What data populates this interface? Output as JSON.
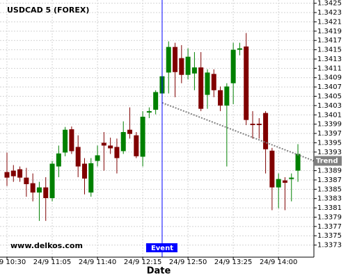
{
  "chart_data": {
    "type": "candlestick",
    "title": "USDCAD 5 (FOREX)",
    "x_label": "Date",
    "watermark": "www.delkos.com",
    "categories": [
      "24/9 10:30",
      null,
      null,
      null,
      null,
      null,
      null,
      "24/9 11:05",
      null,
      null,
      null,
      null,
      null,
      null,
      "24/9 11:40",
      null,
      null,
      null,
      null,
      null,
      null,
      "24/9 12:15",
      null,
      null,
      null,
      null,
      null,
      null,
      "24/9 12:50",
      null,
      null,
      null,
      null,
      null,
      null,
      "24/9 13:25",
      null,
      null,
      null,
      null,
      null,
      null,
      "24/9 14:00",
      null,
      null,
      null
    ],
    "open": [
      1.33887,
      1.3389,
      1.33893,
      1.33875,
      1.33863,
      1.33843,
      1.33854,
      1.33831,
      1.33899,
      1.33929,
      1.33979,
      1.33941,
      1.33905,
      1.33843,
      1.33911,
      1.3395,
      1.33944,
      1.33941,
      1.33932,
      1.33978,
      1.33966,
      1.3392,
      1.34015,
      1.34021,
      1.34056,
      1.34101,
      1.34156,
      1.34132,
      1.34096,
      1.34099,
      1.34112,
      1.34053,
      1.34098,
      1.34063,
      1.3403,
      1.34078,
      1.3415,
      1.34157,
      1.33991,
      1.33991,
      1.34014,
      1.33933,
      1.33854,
      1.33869,
      1.33872,
      1.3389
    ],
    "high": [
      1.33929,
      1.33902,
      1.33899,
      1.33896,
      1.33884,
      1.33866,
      1.33876,
      1.33911,
      1.33944,
      1.33984,
      1.33985,
      1.33966,
      1.33917,
      1.33917,
      1.33944,
      1.33973,
      1.33961,
      1.33959,
      1.33996,
      1.34026,
      1.33973,
      1.34018,
      1.34026,
      1.34063,
      1.34108,
      1.34168,
      1.34165,
      1.3416,
      1.34153,
      1.34145,
      1.34145,
      1.34108,
      1.34108,
      1.34071,
      1.34078,
      1.34165,
      1.34165,
      1.34186,
      1.34018,
      1.34003,
      1.34018,
      1.33939,
      1.33884,
      1.33876,
      1.33884,
      1.33947
    ],
    "low": [
      1.33857,
      1.33866,
      1.33866,
      1.33834,
      1.33824,
      1.33782,
      1.33782,
      1.33824,
      1.33876,
      1.33921,
      1.33926,
      1.33876,
      1.33839,
      1.33834,
      1.33899,
      1.3389,
      1.33926,
      1.33884,
      1.33926,
      1.33959,
      1.33917,
      1.33899,
      1.34003,
      1.34011,
      1.34041,
      1.34056,
      1.34048,
      1.34078,
      1.34086,
      1.34063,
      1.34018,
      1.34023,
      1.34048,
      1.34018,
      1.33899,
      1.34033,
      1.34138,
      1.33988,
      1.33959,
      1.33959,
      1.33884,
      1.33805,
      1.33809,
      1.33805,
      1.33824,
      1.33866
    ],
    "close": [
      1.33875,
      1.33878,
      1.33875,
      1.33861,
      1.33843,
      1.33854,
      1.33831,
      1.33905,
      1.33927,
      1.33978,
      1.33932,
      1.33899,
      1.33873,
      1.33906,
      1.33923,
      1.33944,
      1.33938,
      1.33917,
      1.33973,
      1.33969,
      1.33921,
      1.34006,
      1.34018,
      1.34059,
      1.34093,
      1.34156,
      1.34102,
      1.34096,
      1.34135,
      1.34112,
      1.34023,
      1.34101,
      1.34063,
      1.3403,
      1.34071,
      1.3415,
      1.34153,
      1.33999,
      1.33988,
      1.33988,
      1.33936,
      1.33854,
      1.33872,
      1.33864,
      1.33875,
      1.33926
    ],
    "up_color": "#008000",
    "down_color": "#800000",
    "ylim": [
      1.33704,
      1.34257
    ],
    "yticks": [
      1.3373,
      1.3375,
      1.3377,
      1.3379,
      1.3381,
      1.3383,
      1.3385,
      1.3387,
      1.3389,
      1.3391,
      1.3393,
      1.3395,
      1.3397,
      1.3399,
      1.3401,
      1.3403,
      1.3405,
      1.3407,
      1.3409,
      1.3411,
      1.3413,
      1.3415,
      1.3417,
      1.3419,
      1.3421,
      1.3423,
      1.3425
    ],
    "grid": true,
    "event": {
      "label": "Event",
      "at": 24,
      "color": "#0000ff"
    },
    "trend": {
      "label": "Trend",
      "values": [
        1.34036,
        1.33911
      ],
      "color": "#808080"
    }
  }
}
